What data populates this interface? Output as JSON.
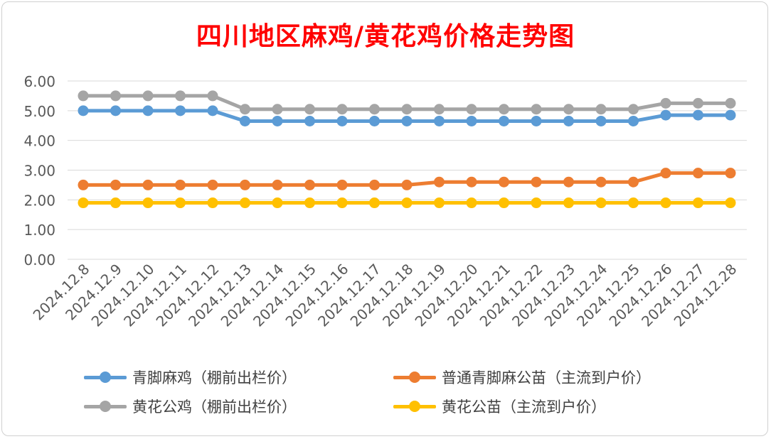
{
  "chart_data": {
    "type": "line",
    "title": "四川地区麻鸡/黄花鸡价格走势图",
    "categories": [
      "2024.12.8",
      "2024.12.9",
      "2024.12.10",
      "2024.12.11",
      "2024.12.12",
      "2024.12.13",
      "2024.12.14",
      "2024.12.15",
      "2024.12.16",
      "2024.12.17",
      "2024.12.18",
      "2024.12.19",
      "2024.12.20",
      "2024.12.21",
      "2024.12.22",
      "2024.12.23",
      "2024.12.24",
      "2024.12.25",
      "2024.12.26",
      "2024.12.27",
      "2024.12.28"
    ],
    "ylim": [
      0,
      6
    ],
    "yticks": [
      "0.00",
      "1.00",
      "2.00",
      "3.00",
      "4.00",
      "5.00",
      "6.00"
    ],
    "grid": true,
    "legend_position": "bottom",
    "series": [
      {
        "name": "青脚麻鸡（棚前出栏价）",
        "color": "#5b9bd5",
        "values": [
          5.0,
          5.0,
          5.0,
          5.0,
          5.0,
          4.65,
          4.65,
          4.65,
          4.65,
          4.65,
          4.65,
          4.65,
          4.65,
          4.65,
          4.65,
          4.65,
          4.65,
          4.65,
          4.85,
          4.85,
          4.85
        ]
      },
      {
        "name": "普通青脚麻公苗（主流到户价）",
        "color": "#ed7d31",
        "values": [
          2.5,
          2.5,
          2.5,
          2.5,
          2.5,
          2.5,
          2.5,
          2.5,
          2.5,
          2.5,
          2.5,
          2.6,
          2.6,
          2.6,
          2.6,
          2.6,
          2.6,
          2.6,
          2.9,
          2.9,
          2.9
        ]
      },
      {
        "name": "黄花公鸡（棚前出栏价）",
        "color": "#a5a5a5",
        "values": [
          5.5,
          5.5,
          5.5,
          5.5,
          5.5,
          5.05,
          5.05,
          5.05,
          5.05,
          5.05,
          5.05,
          5.05,
          5.05,
          5.05,
          5.05,
          5.05,
          5.05,
          5.05,
          5.25,
          5.25,
          5.25
        ]
      },
      {
        "name": "黄花公苗（主流到户价）",
        "color": "#ffc000",
        "values": [
          1.9,
          1.9,
          1.9,
          1.9,
          1.9,
          1.9,
          1.9,
          1.9,
          1.9,
          1.9,
          1.9,
          1.9,
          1.9,
          1.9,
          1.9,
          1.9,
          1.9,
          1.9,
          1.9,
          1.9,
          1.9
        ]
      }
    ]
  }
}
